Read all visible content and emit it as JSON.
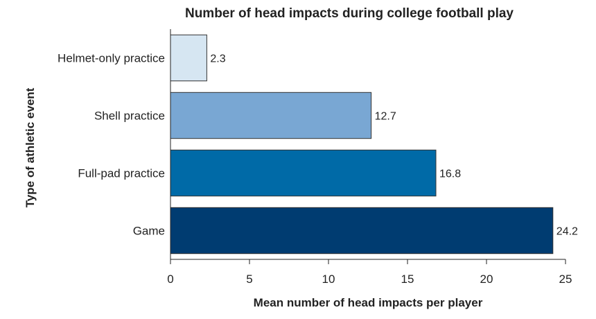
{
  "chart_data": {
    "type": "bar",
    "orientation": "horizontal",
    "title": "Number of head impacts during college football play",
    "xlabel": "Mean number of head impacts per player",
    "ylabel": "Type of athletic event",
    "categories": [
      "Helmet-only practice",
      "Shell practice",
      "Full-pad practice",
      "Game"
    ],
    "values": [
      2.3,
      12.7,
      16.8,
      24.2
    ],
    "value_labels": [
      "2.3",
      "12.7",
      "16.8",
      "24.2"
    ],
    "colors": [
      "#d6e6f2",
      "#79a7d3",
      "#006aa7",
      "#003c71"
    ],
    "xlim": [
      0,
      25
    ],
    "xticks": [
      0,
      5,
      10,
      15,
      20,
      25
    ],
    "grid": false,
    "legend": "none"
  }
}
